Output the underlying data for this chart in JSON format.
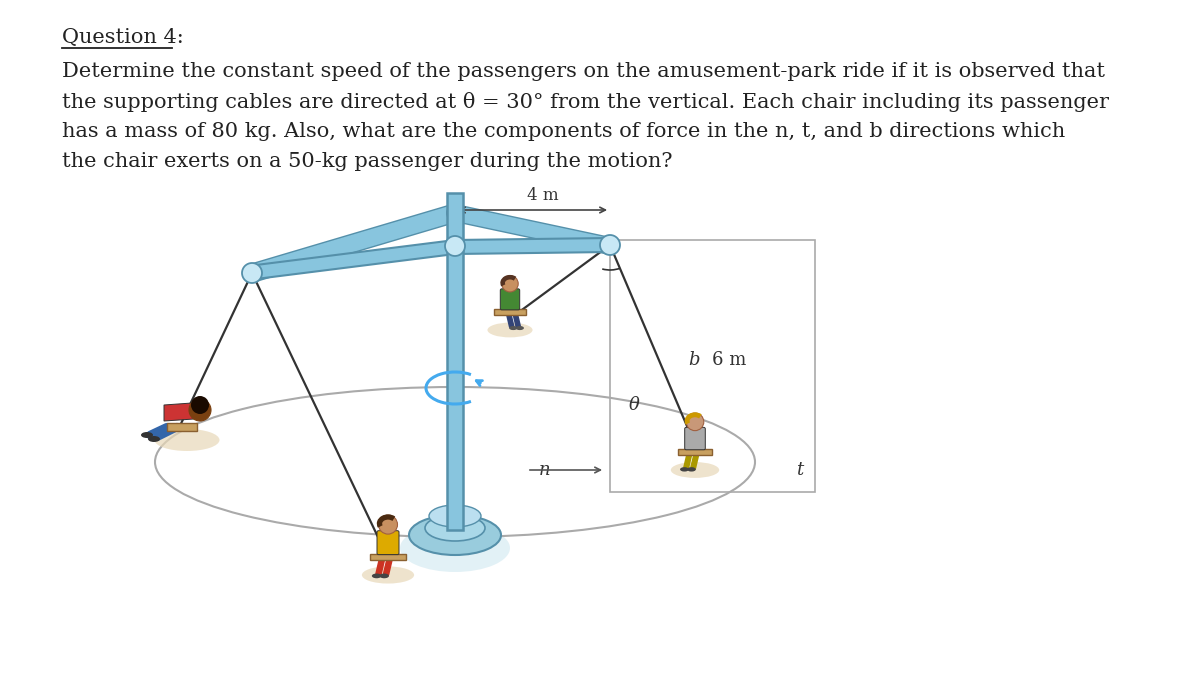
{
  "title": "Question 4:",
  "line1": "Determine the constant speed of the passengers on the amusement-park ride if it is observed that",
  "line2": "the supporting cables are directed at θ = 30° from the vertical. Each chair including its passenger",
  "line3": "has a mass of 80 kg. Also, what are the components of force in the n, t, and b directions which",
  "line4": "the chair exerts on a 50-kg passenger during the motion?",
  "label_4m": "4 m",
  "label_6m": "6 m",
  "label_b": "b",
  "label_t": "t",
  "label_n": "n",
  "label_theta": "θ",
  "bg_color": "#ffffff",
  "text_color": "#222222",
  "pole_color": "#88c5de",
  "pole_edge": "#5590aa",
  "cable_color": "#333333",
  "ellipse_color": "#aaaaaa",
  "shadow_color": "#e8d8b8",
  "title_fontsize": 15,
  "body_fontsize": 15,
  "label_fontsize": 13
}
